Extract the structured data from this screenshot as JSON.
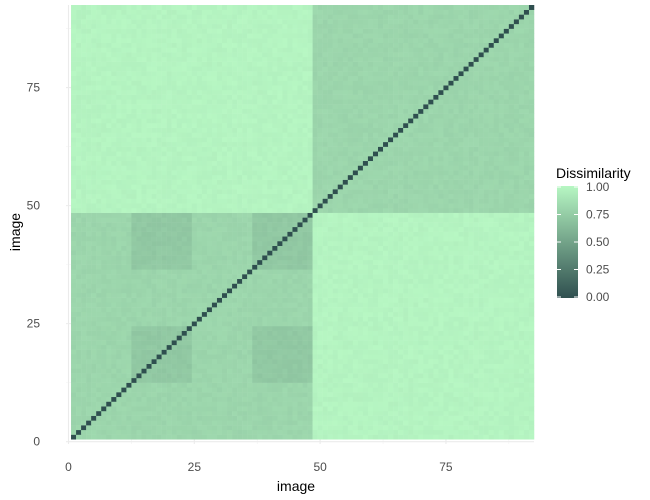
{
  "chart_data": {
    "type": "heatmap",
    "title": "",
    "xlabel": "image",
    "ylabel": "image",
    "n": 92,
    "xlim": [
      -0.5,
      92.5
    ],
    "ylim": [
      -0.5,
      92.5
    ],
    "x_ticks": [
      0,
      25,
      50,
      75
    ],
    "y_ticks": [
      0,
      25,
      50,
      75
    ],
    "x_tick_labels": [
      "0",
      "25",
      "50",
      "75"
    ],
    "y_tick_labels": [
      "0",
      "25",
      "50",
      "75"
    ],
    "grid": true,
    "legend_position": "right",
    "color_scale": {
      "title": "Dissimilarity",
      "low": "#2f4f4f",
      "high": "#b7f7c3",
      "breaks": [
        0.0,
        0.25,
        0.5,
        0.75,
        1.0
      ],
      "labels": [
        "0.00",
        "0.25",
        "0.50",
        "0.75",
        "1.00"
      ]
    },
    "blocks": [
      {
        "rows": [
          1,
          48
        ],
        "cols": [
          1,
          48
        ],
        "value": 0.8
      },
      {
        "rows": [
          49,
          92
        ],
        "cols": [
          49,
          92
        ],
        "value": 0.8
      },
      {
        "rows": [
          1,
          48
        ],
        "cols": [
          49,
          92
        ],
        "value": 0.98
      },
      {
        "rows": [
          49,
          92
        ],
        "cols": [
          1,
          48
        ],
        "value": 0.98
      }
    ],
    "sub_blocks": [
      {
        "rows": [
          13,
          24
        ],
        "cols": [
          13,
          24
        ],
        "value": 0.72
      },
      {
        "rows": [
          37,
          48
        ],
        "cols": [
          37,
          48
        ],
        "value": 0.72
      },
      {
        "rows": [
          13,
          24
        ],
        "cols": [
          37,
          48
        ],
        "value": 0.72
      },
      {
        "rows": [
          37,
          48
        ],
        "cols": [
          13,
          24
        ],
        "value": 0.72
      }
    ],
    "diagonal_value": 0.0
  }
}
